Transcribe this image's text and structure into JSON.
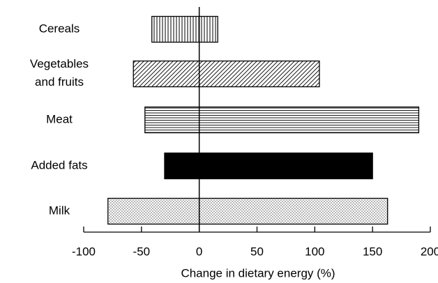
{
  "chart_data": {
    "type": "floating-bar",
    "categories": [
      "Cereals",
      "Vegetables\nand fruits",
      "Meat",
      "Added fats",
      "Milk"
    ],
    "values": [
      [
        -41,
        16
      ],
      [
        -57,
        104
      ],
      [
        -47,
        190
      ],
      [
        -30,
        150
      ],
      [
        -79,
        163
      ]
    ],
    "patterns": [
      "vertical",
      "diagonal",
      "horizontal",
      "solid",
      "dots"
    ],
    "xlim": [
      -100,
      200
    ],
    "xticks": [
      -100,
      -50,
      0,
      50,
      100,
      150,
      200
    ],
    "xlabel": "Change in dietary energy (%)"
  }
}
